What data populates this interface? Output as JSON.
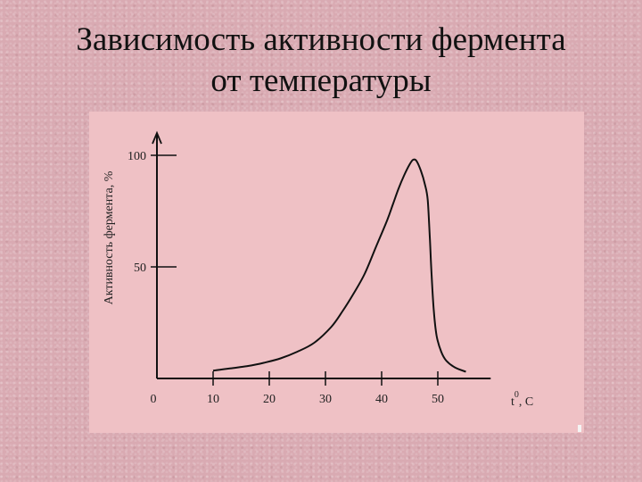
{
  "slide": {
    "title_line1": "Зависимость активности фермента",
    "title_line2": "от температуры"
  },
  "colors": {
    "panel": "#efc1c5",
    "line": "#111111",
    "background": "#d9aab2"
  },
  "chart_data": {
    "type": "line",
    "title": "Зависимость активности фермента от температуры",
    "xlabel": "t, C",
    "xlabel_superscript": "0",
    "ylabel": "Активность фермента, %",
    "x_ticks": [
      0,
      10,
      20,
      30,
      40,
      50
    ],
    "y_ticks": [
      50,
      100
    ],
    "xlim": [
      0,
      61
    ],
    "ylim": [
      0,
      110
    ],
    "grid": false,
    "series": [
      {
        "x": [
          10,
          13,
          16,
          19,
          22,
          25,
          28,
          31,
          33,
          35,
          37,
          39,
          41,
          42,
          43,
          44,
          45,
          45.6,
          46.2,
          47,
          47.7,
          48.2,
          48.6,
          48.9,
          49.3,
          49.8,
          50.6,
          51.5,
          53,
          55
        ],
        "values": [
          3.5,
          4.5,
          5.5,
          7,
          9,
          12,
          16,
          23,
          30,
          38,
          47,
          59,
          71,
          78,
          85,
          91,
          96,
          98,
          97.5,
          93,
          87,
          80,
          62,
          46,
          30,
          19,
          12,
          8,
          5,
          3
        ]
      }
    ]
  }
}
